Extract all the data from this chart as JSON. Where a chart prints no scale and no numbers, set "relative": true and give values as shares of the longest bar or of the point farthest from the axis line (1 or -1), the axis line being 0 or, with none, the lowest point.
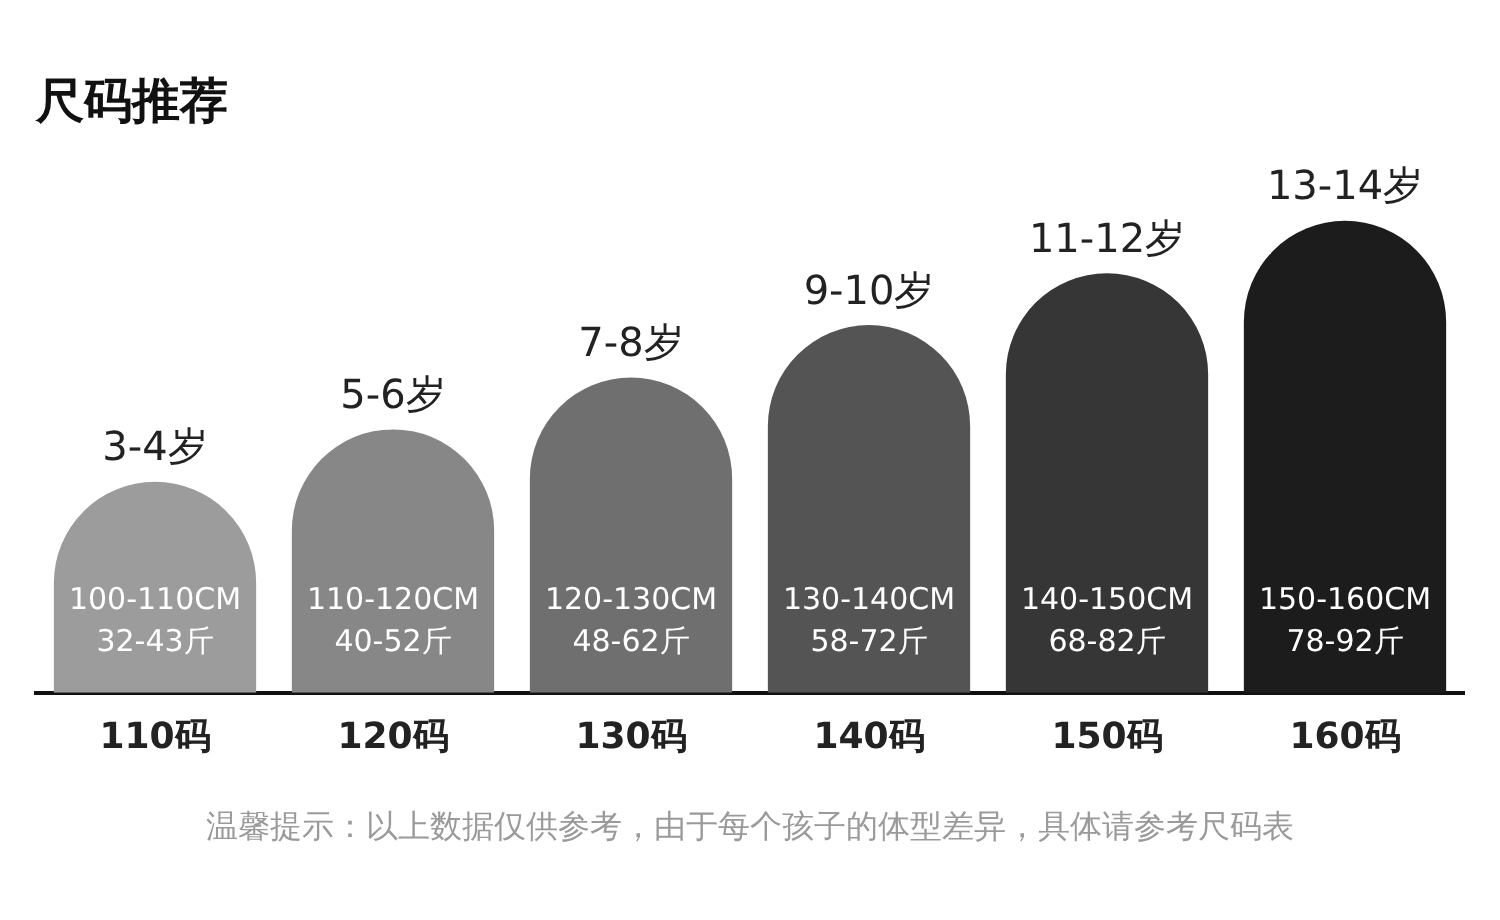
{
  "chart_data": {
    "type": "bar",
    "title": "尺码推荐",
    "relative": true,
    "categories": [
      "110码",
      "120码",
      "130码",
      "140码",
      "150码",
      "160码"
    ],
    "values": [
      0.447,
      0.558,
      0.668,
      0.779,
      0.889,
      1
    ],
    "colors": [
      "#9c9c9c",
      "#878787",
      "#6f6f6f",
      "#545454",
      "#363636",
      "#1c1c1c"
    ],
    "annotations": [
      {
        "text": "3-4岁",
        "x": "110码",
        "y": 0.447
      },
      {
        "text": "5-6岁",
        "x": "120码",
        "y": 0.558
      },
      {
        "text": "7-8岁",
        "x": "130码",
        "y": 0.668
      },
      {
        "text": "9-10岁",
        "x": "140码",
        "y": 0.779
      },
      {
        "text": "11-12岁",
        "x": "150码",
        "y": 0.889
      },
      {
        "text": "13-14岁",
        "x": "160码",
        "y": 1
      },
      "100-110CM",
      "32-43斤",
      "110-120CM",
      "40-52斤",
      "120-130CM",
      "48-62斤",
      "130-140CM",
      "58-72斤",
      "140-150CM",
      "68-82斤",
      "150-160CM",
      "78-92斤",
      "温馨提示：以上数据仅供参考，由于每个孩子的体型差异，具体请参考尺码表"
    ],
    "legend": false
  }
}
